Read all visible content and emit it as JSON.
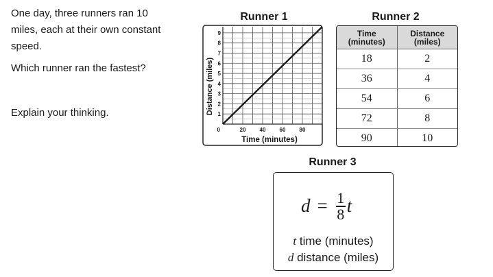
{
  "question": {
    "lines": [
      "One day, three runners ran 10",
      "miles, each at their own constant",
      "speed."
    ],
    "ask": "Which runner ran the fastest?",
    "explain": "Explain your thinking."
  },
  "runner1": {
    "title": "Runner 1",
    "chart_data": {
      "type": "line",
      "xlabel": "Time (minutes)",
      "ylabel": "Distance (miles)",
      "xlim": [
        0,
        100
      ],
      "ylim": [
        0,
        9.6
      ],
      "x_ticks": [
        "20",
        "40",
        "60",
        "80"
      ],
      "y_ticks": [
        "1",
        "2",
        "3",
        "4",
        "5",
        "6",
        "7",
        "8",
        "9"
      ],
      "origin_label": "0",
      "grid": true,
      "series": [
        {
          "x": [
            0,
            100
          ],
          "y": [
            0,
            9.6
          ]
        }
      ]
    }
  },
  "runner2": {
    "title": "Runner 2",
    "headers": [
      "Time\n(minutes)",
      "Distance\n(miles)"
    ],
    "rows": [
      [
        "18",
        "2"
      ],
      [
        "36",
        "4"
      ],
      [
        "54",
        "6"
      ],
      [
        "72",
        "8"
      ],
      [
        "90",
        "10"
      ]
    ]
  },
  "runner3": {
    "title": "Runner 3",
    "equation": {
      "lhs": "d",
      "op": "=",
      "numerator": "1",
      "denominator": "8",
      "var": "t"
    },
    "def_t": {
      "symbol": "t",
      "text": "time (minutes)"
    },
    "def_d": {
      "symbol": "d",
      "text": "distance (miles)"
    }
  }
}
